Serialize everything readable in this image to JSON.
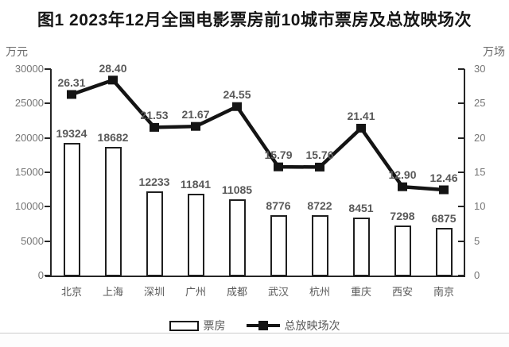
{
  "title": "图1 2023年12月全国电影票房前10城市票房及总放映场次",
  "legend": {
    "bar_label": "票房",
    "line_label": "总放映场次"
  },
  "colors": {
    "bar_fill": "#ffffff",
    "bar_border": "#1f1f1f",
    "line": "#141414",
    "marker": "#141414",
    "data_label": "#595959",
    "axis_text": "#757575",
    "axis_line": "#262626",
    "title_text": "#161616"
  },
  "chart_data": {
    "type": "bar",
    "combo": "bar+line dual axis",
    "title": "图1 2023年12月全国电影票房前10城市票房及总放映场次",
    "categories": [
      "北京",
      "上海",
      "深圳",
      "广州",
      "成都",
      "武汉",
      "杭州",
      "重庆",
      "西安",
      "南京"
    ],
    "series": [
      {
        "name": "票房",
        "type": "bar",
        "axis": "left",
        "values": [
          19324,
          18682,
          12233,
          11841,
          11085,
          8776,
          8722,
          8451,
          7298,
          6875
        ],
        "value_labels": [
          "19324",
          "18682",
          "12233",
          "11841",
          "11085",
          "8776",
          "8722",
          "8451",
          "7298",
          "6875"
        ]
      },
      {
        "name": "总放映场次",
        "type": "line",
        "axis": "right",
        "values": [
          26.31,
          28.4,
          21.53,
          21.67,
          24.55,
          15.79,
          15.76,
          21.41,
          12.9,
          12.46
        ],
        "value_labels": [
          "26.31",
          "28.40",
          "21.53",
          "21.67",
          "24.55",
          "15.79",
          "15.76",
          "21.41",
          "12.90",
          "12.46"
        ]
      }
    ],
    "left_axis": {
      "label": "万元",
      "min": 0,
      "max": 30000,
      "step": 5000,
      "tick_labels": [
        "0",
        "5000",
        "10000",
        "15000",
        "20000",
        "25000",
        "30000"
      ]
    },
    "right_axis": {
      "label": "万场",
      "min": 0,
      "max": 30,
      "step": 5,
      "tick_labels": [
        "0",
        "5",
        "10",
        "15",
        "20",
        "25",
        "30"
      ]
    },
    "grid": false,
    "legend_position": "bottom"
  }
}
